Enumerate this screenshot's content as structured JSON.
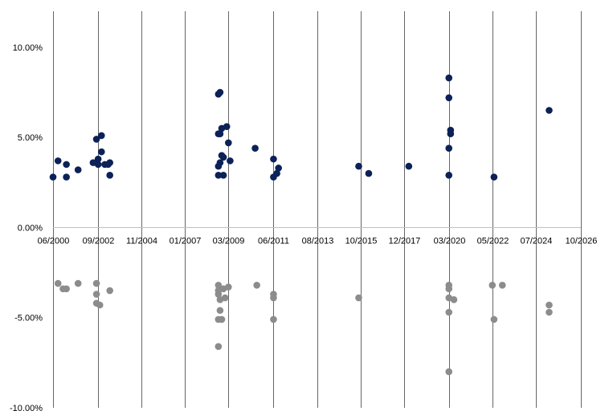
{
  "chart_data": {
    "type": "scatter",
    "title": "",
    "xlabel": "",
    "ylabel": "",
    "grid": {
      "vertical": true,
      "horizontal": false
    },
    "x_ticks": [
      "06/2000",
      "09/2002",
      "11/2004",
      "01/2007",
      "03/2009",
      "06/2011",
      "08/2013",
      "10/2015",
      "12/2017",
      "03/2020",
      "05/2022",
      "07/2024",
      "10/2026"
    ],
    "xlim": [
      "2000-06",
      "2026-10"
    ],
    "y_ticks": [
      "10.00%",
      "5.00%",
      "0.00%",
      "-5.00%",
      "-10.00%"
    ],
    "ylim": [
      -10,
      12
    ],
    "colors": {
      "positive": "#0b2157",
      "negative": "#8c8c8c",
      "grid": "#000000",
      "axis": "#bfbfbf"
    },
    "series": [
      {
        "values": [
          [
            "2000-06",
            2.8
          ],
          [
            "2000-09",
            3.7
          ],
          [
            "2001-02",
            3.5
          ],
          [
            "2001-02",
            2.8
          ],
          [
            "2001-09",
            3.2
          ],
          [
            "2002-06",
            3.6
          ],
          [
            "2002-08",
            4.9
          ],
          [
            "2002-09",
            3.5
          ],
          [
            "2002-09",
            3.8
          ],
          [
            "2002-11",
            5.1
          ],
          [
            "2002-11",
            4.2
          ],
          [
            "2003-01",
            3.5
          ],
          [
            "2003-03",
            3.5
          ],
          [
            "2003-04",
            3.6
          ],
          [
            "2003-04",
            2.9
          ],
          [
            "2008-09",
            7.4
          ],
          [
            "2008-10",
            7.5
          ],
          [
            "2008-09",
            5.2
          ],
          [
            "2008-10",
            5.2
          ],
          [
            "2008-11",
            5.5
          ],
          [
            "2008-11",
            4.0
          ],
          [
            "2008-10",
            3.6
          ],
          [
            "2008-09",
            3.4
          ],
          [
            "2008-09",
            2.9
          ],
          [
            "2008-12",
            2.9
          ],
          [
            "2008-12",
            3.9
          ],
          [
            "2009-02",
            5.6
          ],
          [
            "2009-03",
            4.7
          ],
          [
            "2009-04",
            3.7
          ],
          [
            "2010-07",
            4.4
          ],
          [
            "2011-06",
            3.8
          ],
          [
            "2011-06",
            2.8
          ],
          [
            "2011-08",
            3.0
          ],
          [
            "2011-09",
            3.3
          ],
          [
            "2015-09",
            3.4
          ],
          [
            "2016-03",
            3.0
          ],
          [
            "2018-03",
            3.4
          ],
          [
            "2020-03",
            2.9
          ],
          [
            "2020-03",
            4.4
          ],
          [
            "2020-04",
            5.4
          ],
          [
            "2020-04",
            5.2
          ],
          [
            "2020-03",
            7.2
          ],
          [
            "2020-03",
            8.3
          ],
          [
            "2022-06",
            2.8
          ],
          [
            "2025-03",
            6.5
          ]
        ]
      },
      {
        "values": [
          [
            "2000-09",
            -3.1
          ],
          [
            "2000-12",
            -3.4
          ],
          [
            "2001-02",
            -3.4
          ],
          [
            "2001-09",
            -3.1
          ],
          [
            "2002-08",
            -3.1
          ],
          [
            "2002-08",
            -3.7
          ],
          [
            "2002-08",
            -4.2
          ],
          [
            "2002-10",
            -4.3
          ],
          [
            "2003-04",
            -3.5
          ],
          [
            "2008-09",
            -3.2
          ],
          [
            "2008-09",
            -3.5
          ],
          [
            "2008-09",
            -3.7
          ],
          [
            "2008-10",
            -4.0
          ],
          [
            "2008-10",
            -4.6
          ],
          [
            "2008-09",
            -5.1
          ],
          [
            "2008-11",
            -5.1
          ],
          [
            "2008-09",
            -6.6
          ],
          [
            "2008-12",
            -3.4
          ],
          [
            "2009-01",
            -3.9
          ],
          [
            "2009-03",
            -3.3
          ],
          [
            "2010-08",
            -3.2
          ],
          [
            "2011-06",
            -3.7
          ],
          [
            "2011-06",
            -3.9
          ],
          [
            "2011-06",
            -5.1
          ],
          [
            "2015-09",
            -3.9
          ],
          [
            "2020-03",
            -3.2
          ],
          [
            "2020-03",
            -3.4
          ],
          [
            "2020-03",
            -3.9
          ],
          [
            "2020-06",
            -4.0
          ],
          [
            "2020-03",
            -4.7
          ],
          [
            "2020-03",
            -8.0
          ],
          [
            "2022-05",
            -3.2
          ],
          [
            "2022-11",
            -3.2
          ],
          [
            "2022-06",
            -5.1
          ],
          [
            "2025-03",
            -4.3
          ],
          [
            "2025-03",
            -4.7
          ]
        ]
      }
    ]
  }
}
